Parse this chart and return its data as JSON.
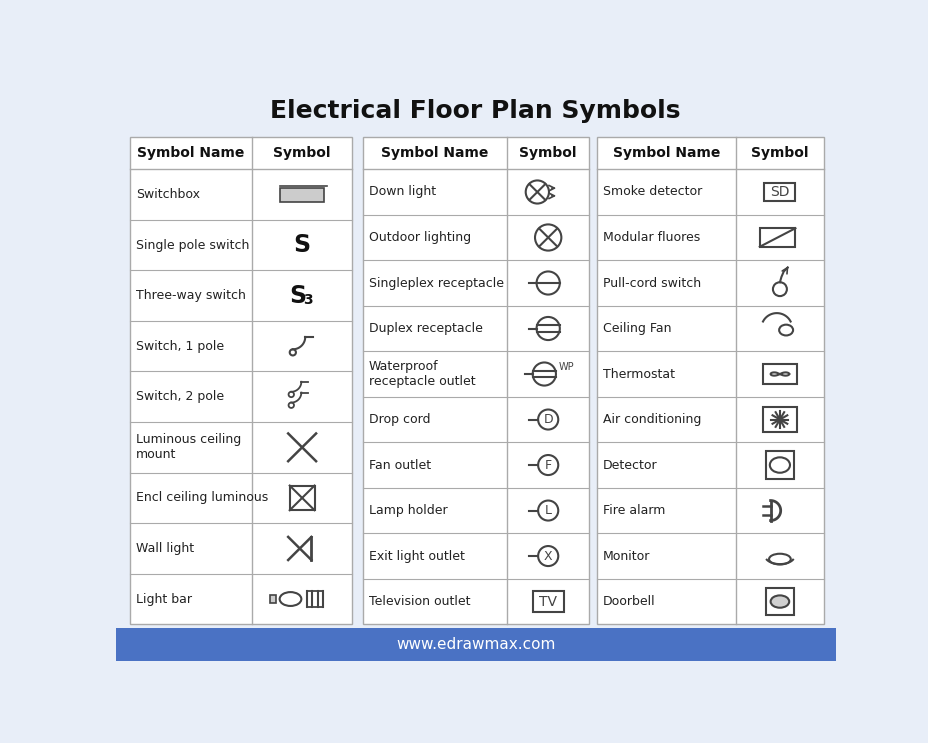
{
  "title": "Electrical Floor Plan Symbols",
  "title_fontsize": 18,
  "title_fontweight": "bold",
  "bg_color": "#e8eef8",
  "table_bg": "#ffffff",
  "header_bg": "#ffffff",
  "border_color": "#aaaaaa",
  "footer_bg": "#4a72c4",
  "footer_text": "www.edrawmax.com",
  "footer_text_color": "#ffffff",
  "col1_rows": [
    "Switchbox",
    "Single pole switch",
    "Three-way switch",
    "Switch, 1 pole",
    "Switch, 2 pole",
    "Luminous ceiling\nmount",
    "Encl ceiling luminous",
    "Wall light",
    "Light bar"
  ],
  "col2_rows": [
    "Down light",
    "Outdoor lighting",
    "Singleplex receptacle",
    "Duplex receptacle",
    "Waterproof\nreceptacle outlet",
    "Drop cord",
    "Fan outlet",
    "Lamp holder",
    "Exit light outlet",
    "Television outlet"
  ],
  "col3_rows": [
    "Smoke detector",
    "Modular fluores",
    "Pull-cord switch",
    "Ceiling Fan",
    "Thermostat",
    "Air conditioning",
    "Detector",
    "Fire alarm",
    "Monitor",
    "Doorbell"
  ]
}
